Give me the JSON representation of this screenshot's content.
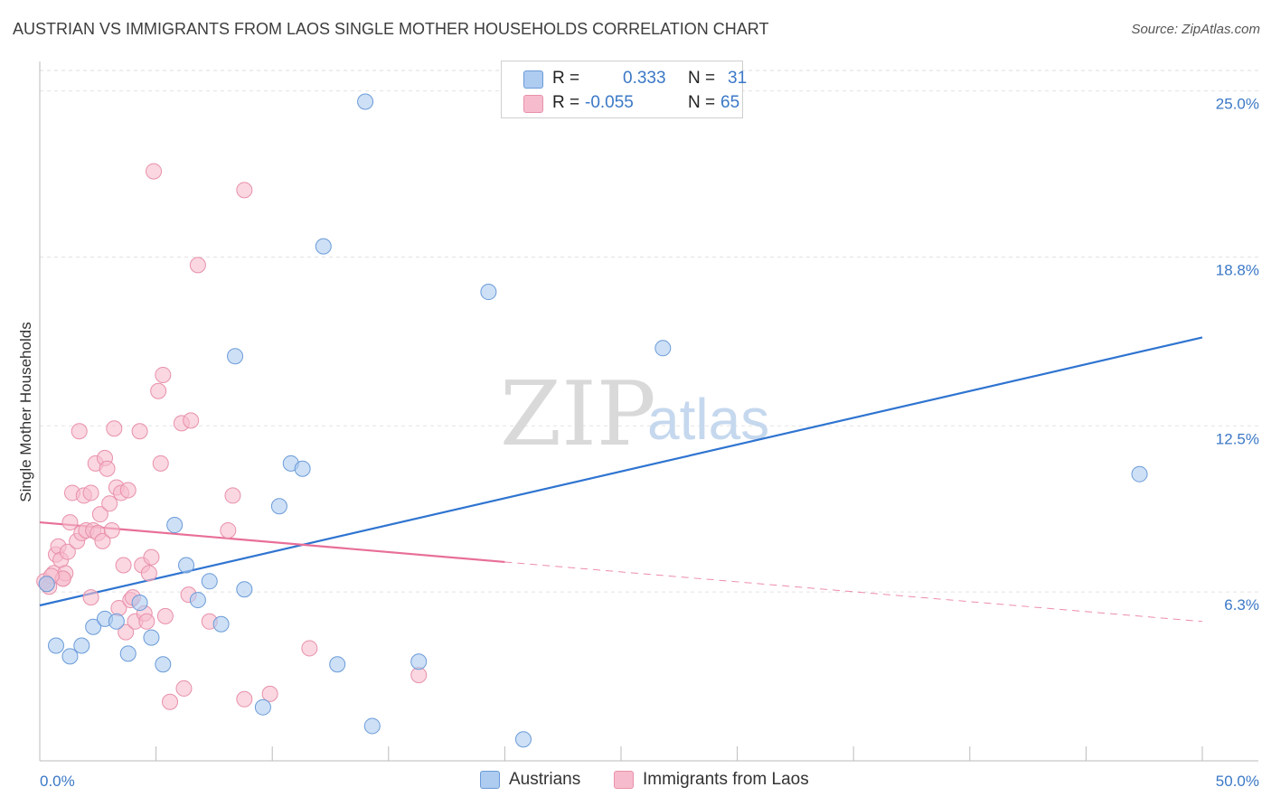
{
  "title": "AUSTRIAN VS IMMIGRANTS FROM LAOS SINGLE MOTHER HOUSEHOLDS CORRELATION CHART",
  "source": "Source: ZipAtlas.com",
  "watermark": {
    "zip": "ZIP",
    "atlas": "atlas"
  },
  "legend": {
    "austrians": {
      "r_label": "R =",
      "r_value": "0.333",
      "n_label": "N =",
      "n_value": "31"
    },
    "laos": {
      "r_label": "R =",
      "r_value": "-0.055",
      "n_label": "N =",
      "n_value": "65"
    }
  },
  "bottom_legend": {
    "austrians": "Austrians",
    "laos": "Immigrants from Laos"
  },
  "colors": {
    "blue_fill": "#aecbf0",
    "blue_stroke": "#6a9bd8",
    "blue_line": "#2f74d0",
    "pink_fill": "#f6bccd",
    "pink_stroke": "#e890aa",
    "pink_line": "#e86f98"
  },
  "chart_data": {
    "type": "scatter",
    "title": "AUSTRIAN VS IMMIGRANTS FROM LAOS SINGLE MOTHER HOUSEHOLDS CORRELATION CHART",
    "xlabel": "",
    "ylabel": "Single Mother Households",
    "xlim": [
      0,
      50
    ],
    "ylim": [
      0,
      26.1
    ],
    "x_tick_labels": [
      "0.0%",
      "50.0%"
    ],
    "y_ticks": [
      6.3,
      12.5,
      18.8,
      25.0
    ],
    "y_tick_labels": [
      "6.3%",
      "12.5%",
      "18.8%",
      "25.0%"
    ],
    "series": [
      {
        "name": "Austrians",
        "r": 0.333,
        "n": 31,
        "trend": {
          "x0": 0,
          "y0": 5.8,
          "x1": 50,
          "y1": 15.8,
          "solid_until": 50
        },
        "points": [
          [
            0.3,
            6.6
          ],
          [
            0.7,
            4.3
          ],
          [
            1.3,
            3.9
          ],
          [
            1.8,
            4.3
          ],
          [
            2.3,
            5.0
          ],
          [
            2.8,
            5.3
          ],
          [
            3.3,
            5.2
          ],
          [
            3.8,
            4.0
          ],
          [
            4.3,
            5.9
          ],
          [
            4.8,
            4.6
          ],
          [
            5.3,
            3.6
          ],
          [
            5.8,
            8.8
          ],
          [
            6.3,
            7.3
          ],
          [
            6.8,
            6.0
          ],
          [
            7.3,
            6.7
          ],
          [
            7.8,
            5.1
          ],
          [
            8.4,
            15.1
          ],
          [
            8.8,
            6.4
          ],
          [
            9.6,
            2.0
          ],
          [
            10.3,
            9.5
          ],
          [
            10.8,
            11.1
          ],
          [
            11.3,
            10.9
          ],
          [
            12.2,
            19.2
          ],
          [
            12.8,
            3.6
          ],
          [
            14.3,
            1.3
          ],
          [
            14.0,
            24.6
          ],
          [
            16.3,
            3.7
          ],
          [
            19.3,
            17.5
          ],
          [
            20.8,
            0.8
          ],
          [
            26.8,
            15.4
          ],
          [
            47.3,
            10.7
          ]
        ]
      },
      {
        "name": "Immigrants from Laos",
        "r": -0.055,
        "n": 65,
        "trend": {
          "x0": 0,
          "y0": 8.9,
          "x1": 50,
          "y1": 5.2,
          "solid_until": 20
        },
        "points": [
          [
            0.2,
            6.7
          ],
          [
            0.4,
            6.5
          ],
          [
            0.6,
            7.0
          ],
          [
            0.7,
            7.7
          ],
          [
            0.8,
            8.0
          ],
          [
            0.9,
            7.5
          ],
          [
            1.0,
            6.8
          ],
          [
            1.1,
            7.0
          ],
          [
            1.2,
            7.8
          ],
          [
            1.3,
            8.9
          ],
          [
            1.4,
            10.0
          ],
          [
            1.6,
            8.2
          ],
          [
            1.7,
            12.3
          ],
          [
            1.8,
            8.5
          ],
          [
            1.9,
            9.9
          ],
          [
            2.0,
            8.6
          ],
          [
            2.2,
            10.0
          ],
          [
            2.2,
            6.1
          ],
          [
            2.3,
            8.6
          ],
          [
            2.4,
            11.1
          ],
          [
            2.5,
            8.5
          ],
          [
            2.6,
            9.2
          ],
          [
            2.7,
            8.2
          ],
          [
            2.8,
            11.3
          ],
          [
            2.9,
            10.9
          ],
          [
            3.0,
            9.6
          ],
          [
            3.1,
            8.6
          ],
          [
            3.2,
            12.4
          ],
          [
            3.3,
            10.2
          ],
          [
            3.4,
            5.7
          ],
          [
            3.5,
            10.0
          ],
          [
            3.6,
            7.3
          ],
          [
            3.7,
            4.8
          ],
          [
            3.8,
            10.1
          ],
          [
            3.9,
            6.0
          ],
          [
            4.0,
            6.1
          ],
          [
            4.1,
            5.2
          ],
          [
            4.3,
            12.3
          ],
          [
            4.4,
            7.3
          ],
          [
            4.5,
            5.5
          ],
          [
            4.6,
            5.2
          ],
          [
            4.7,
            7.0
          ],
          [
            4.8,
            7.6
          ],
          [
            4.9,
            22.0
          ],
          [
            5.1,
            13.8
          ],
          [
            5.2,
            11.1
          ],
          [
            5.3,
            14.4
          ],
          [
            5.4,
            5.4
          ],
          [
            5.6,
            2.2
          ],
          [
            6.1,
            12.6
          ],
          [
            6.2,
            2.7
          ],
          [
            6.4,
            6.2
          ],
          [
            6.5,
            12.7
          ],
          [
            6.8,
            18.5
          ],
          [
            7.3,
            5.2
          ],
          [
            8.1,
            8.6
          ],
          [
            8.3,
            9.9
          ],
          [
            8.8,
            21.3
          ],
          [
            8.8,
            2.3
          ],
          [
            9.9,
            2.5
          ],
          [
            11.6,
            4.2
          ],
          [
            16.3,
            3.2
          ],
          [
            1.0,
            6.8
          ],
          [
            0.5,
            6.9
          ],
          [
            0.3,
            6.6
          ]
        ]
      }
    ]
  }
}
